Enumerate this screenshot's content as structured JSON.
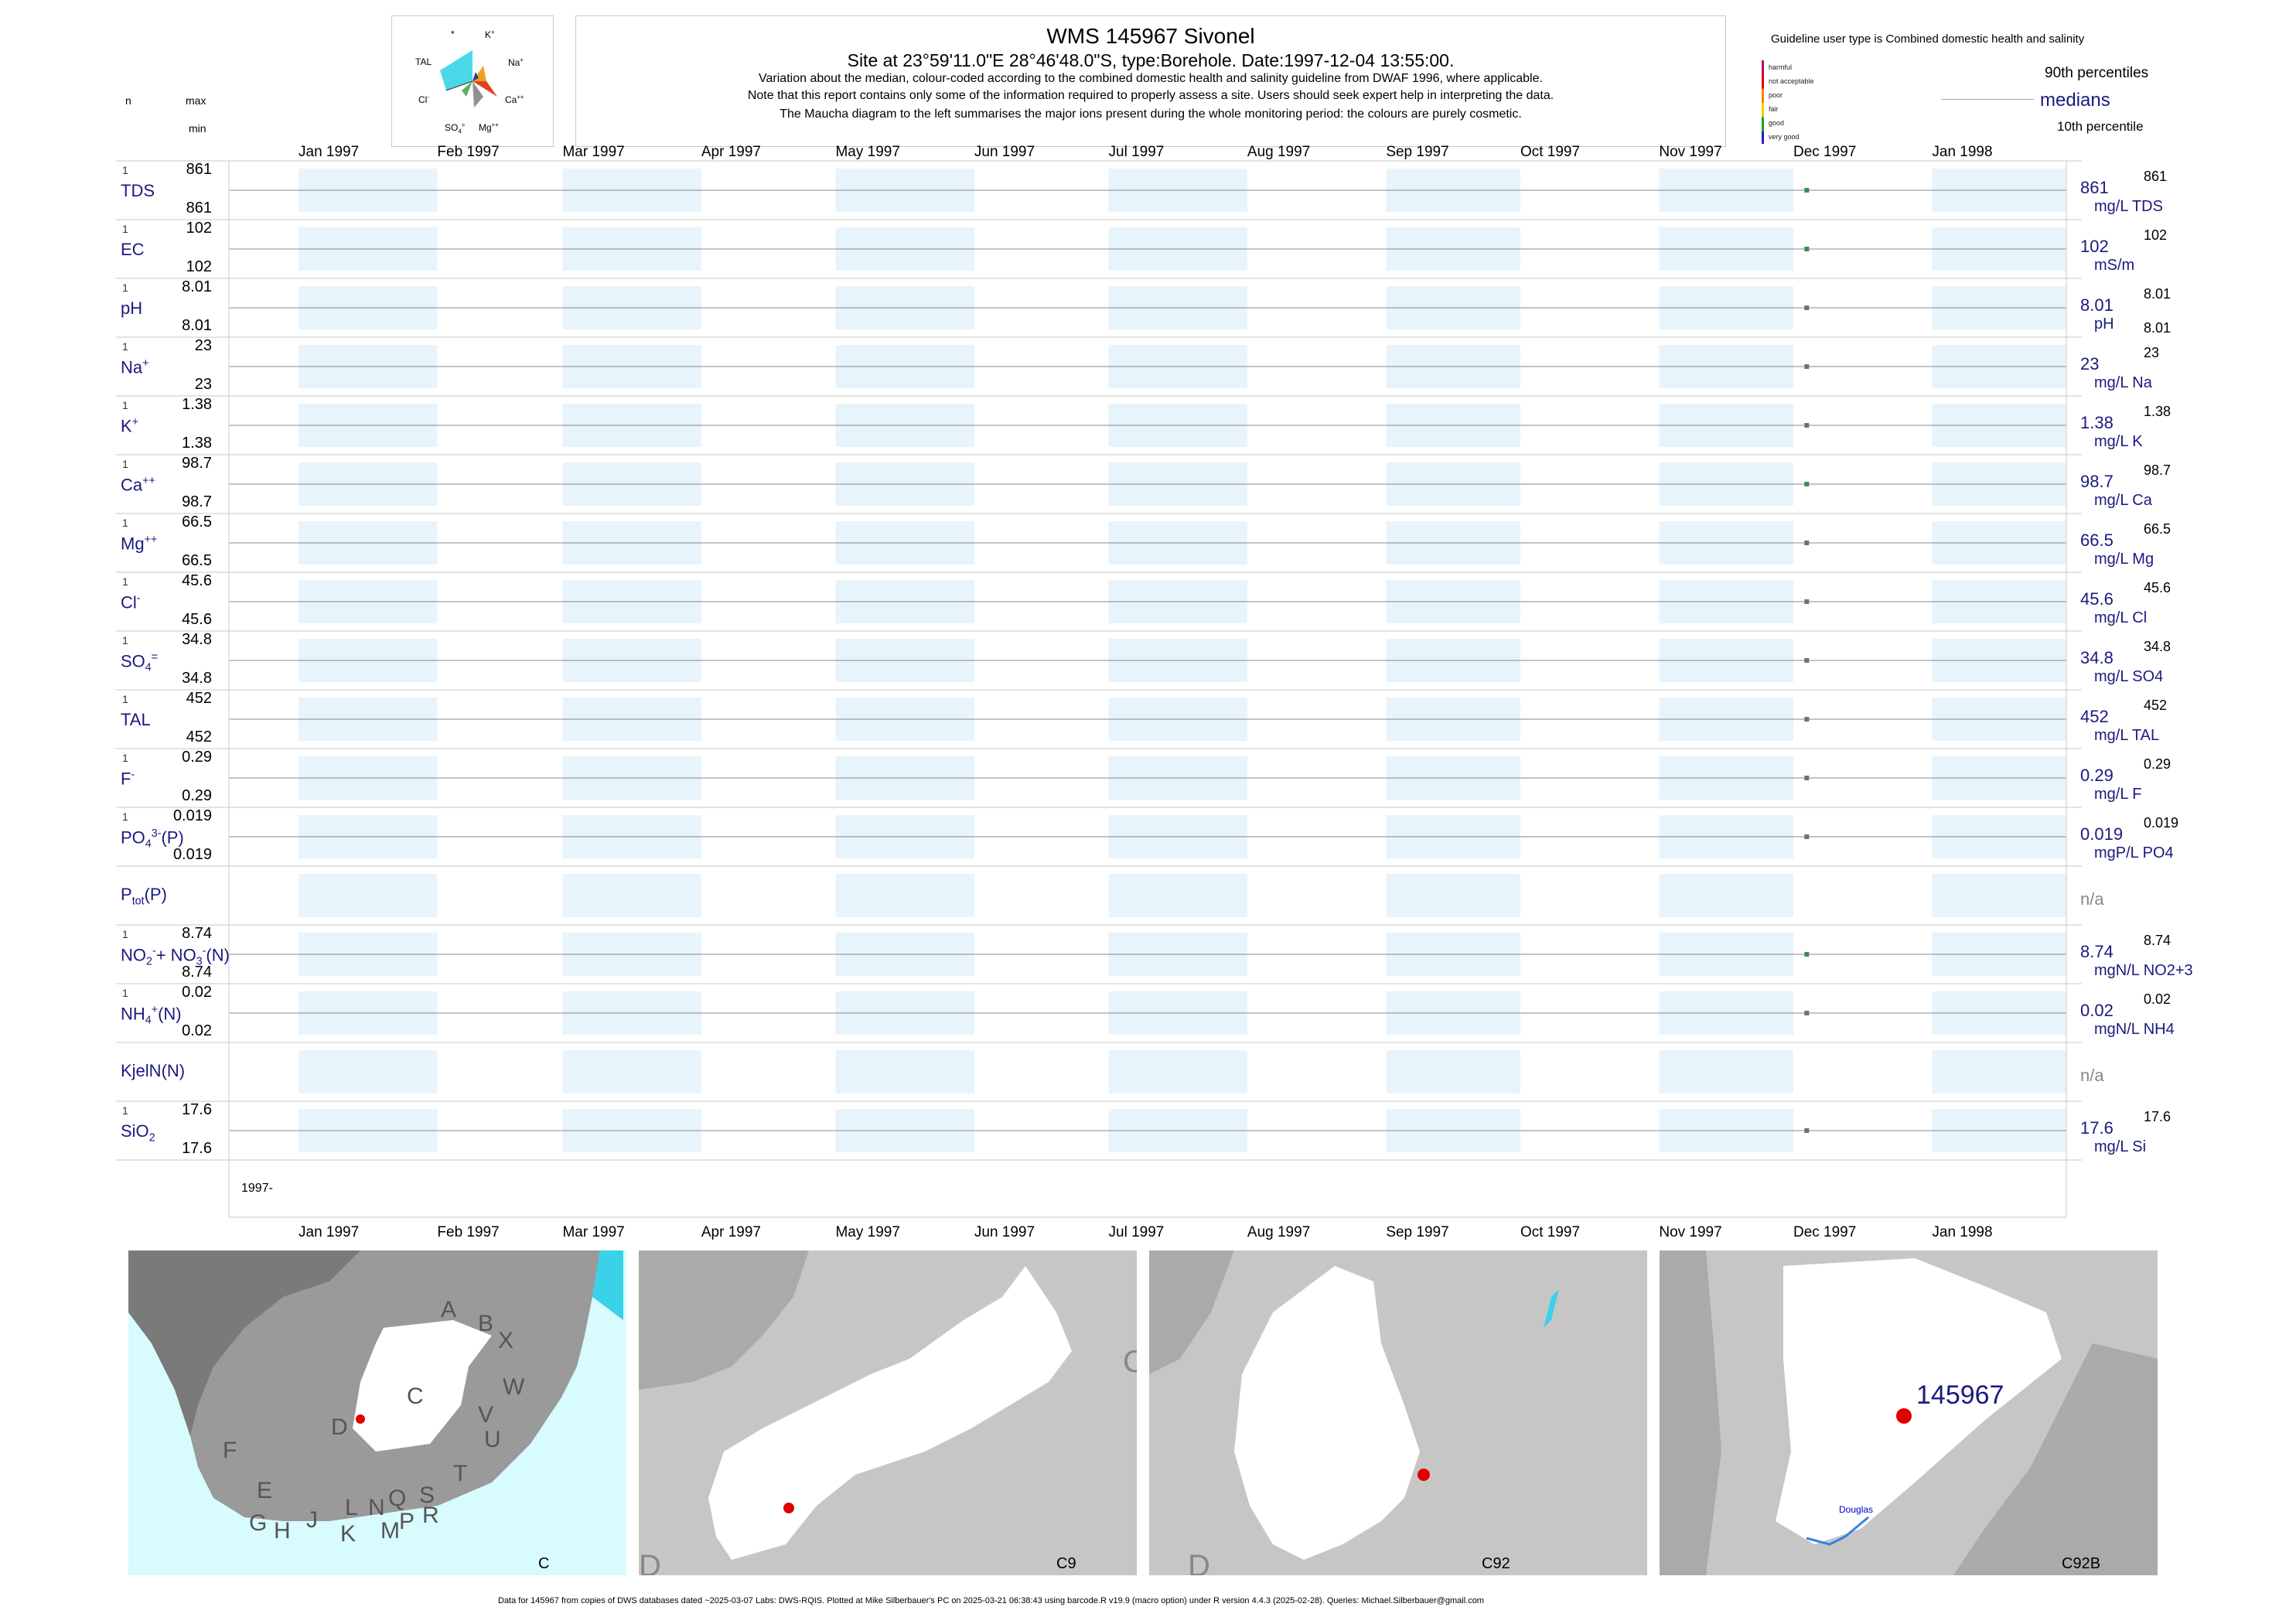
{
  "header": {
    "title": "WMS 145967  Sivonel",
    "subtitle": "Site at 23°59'11.0\"E 28°46'48.0\"S, type:Borehole. Date:1997-12-04 13:55:00.",
    "notes": [
      "Variation about the median,  colour-coded according to the combined domestic health and salinity guideline from DWAF 1996, where applicable.",
      "Note that this report contains only some of the information required to properly assess a site. Users should seek expert help in interpreting the data.",
      "The Maucha diagram to the left summarises the major ions present during the whole monitoring period: the colours are purely cosmetic."
    ]
  },
  "maucha": {
    "labels": [
      "*",
      "K+",
      "TAL",
      "Na+",
      "Cl-",
      "Ca++",
      "SO4=",
      "Mg++"
    ]
  },
  "left_header": {
    "n": "n",
    "max": "max",
    "min": "min"
  },
  "legend": {
    "guideline_text": "Guideline user type is Combined domestic health and salinity",
    "classes": [
      {
        "label": "harmful",
        "color": "#c0006c"
      },
      {
        "label": "not acceptable",
        "color": "#e00000"
      },
      {
        "label": "poor",
        "color": "#ff8000"
      },
      {
        "label": "fair",
        "color": "#e8d000"
      },
      {
        "label": "good",
        "color": "#20a020"
      },
      {
        "label": "very good",
        "color": "#2020c0"
      }
    ],
    "p90": "90th percentiles",
    "medians": "medians",
    "p10": "10th percentile"
  },
  "months": [
    "Jan 1997",
    "Feb 1997",
    "Mar 1997",
    "Apr 1997",
    "May 1997",
    "Jun 1997",
    "Jul 1997",
    "Aug 1997",
    "Sep 1997",
    "Oct 1997",
    "Nov 1997",
    "Dec 1997",
    "Jan 1998"
  ],
  "x_start_label": "1997-",
  "colors": {
    "shade": "#e8f4fc",
    "point_good": "#3a8a5a",
    "point_grey": "#707070",
    "line": "#888888",
    "navy": "#1a1a80"
  },
  "chart_data": {
    "type": "scatter",
    "x_axis": {
      "type": "date",
      "range": [
        "1997-01-01",
        "1998-01-31"
      ],
      "tick_labels": [
        "Jan 1997",
        "Feb 1997",
        "Mar 1997",
        "Apr 1997",
        "May 1997",
        "Jun 1997",
        "Jul 1997",
        "Aug 1997",
        "Sep 1997",
        "Oct 1997",
        "Nov 1997",
        "Dec 1997",
        "Jan 1998"
      ]
    },
    "sample_date": "1997-12-04",
    "series": [
      {
        "name": "TDS",
        "n": "1",
        "max": "861",
        "min": "861",
        "median": "861",
        "unit": "mg/L TDS",
        "p90": "861",
        "p10": "",
        "class": "good"
      },
      {
        "name": "EC",
        "n": "1",
        "max": "102",
        "min": "102",
        "median": "102",
        "unit": "mS/m",
        "p90": "102",
        "p10": "",
        "class": "good"
      },
      {
        "name": "pH",
        "n": "1",
        "max": "8.01",
        "min": "8.01",
        "median": "8.01",
        "unit": "pH",
        "p90": "8.01",
        "p10": "8.01",
        "class": "grey"
      },
      {
        "name": "Na+",
        "n": "1",
        "max": "23",
        "min": "23",
        "median": "23",
        "unit": "mg/L Na",
        "p90": "23",
        "p10": "",
        "class": "grey"
      },
      {
        "name": "K+",
        "n": "1",
        "max": "1.38",
        "min": "1.38",
        "median": "1.38",
        "unit": "mg/L K",
        "p90": "1.38",
        "p10": "",
        "class": "grey"
      },
      {
        "name": "Ca++",
        "n": "1",
        "max": "98.7",
        "min": "98.7",
        "median": "98.7",
        "unit": "mg/L Ca",
        "p90": "98.7",
        "p10": "",
        "class": "good"
      },
      {
        "name": "Mg++",
        "n": "1",
        "max": "66.5",
        "min": "66.5",
        "median": "66.5",
        "unit": "mg/L Mg",
        "p90": "66.5",
        "p10": "",
        "class": "grey"
      },
      {
        "name": "Cl-",
        "n": "1",
        "max": "45.6",
        "min": "45.6",
        "median": "45.6",
        "unit": "mg/L Cl",
        "p90": "45.6",
        "p10": "",
        "class": "grey"
      },
      {
        "name": "SO4=",
        "n": "1",
        "max": "34.8",
        "min": "34.8",
        "median": "34.8",
        "unit": "mg/L SO4",
        "p90": "34.8",
        "p10": "",
        "class": "grey"
      },
      {
        "name": "TAL",
        "n": "1",
        "max": "452",
        "min": "452",
        "median": "452",
        "unit": "mg/L TAL",
        "p90": "452",
        "p10": "",
        "class": "grey"
      },
      {
        "name": "F-",
        "n": "1",
        "max": "0.29",
        "min": "0.29",
        "median": "0.29",
        "unit": "mg/L F",
        "p90": "0.29",
        "p10": "",
        "class": "grey"
      },
      {
        "name": "PO43-(P)",
        "n": "1",
        "max": "0.019",
        "min": "0.019",
        "median": "0.019",
        "unit": "mgP/L PO4",
        "p90": "0.019",
        "p10": "",
        "class": "grey"
      },
      {
        "name": "Ptot(P)",
        "n": "",
        "max": "",
        "min": "",
        "median": "n/a",
        "unit": "",
        "p90": "",
        "p10": "",
        "class": "none"
      },
      {
        "name": "NO2-+NO3-(N)",
        "n": "1",
        "max": "8.74",
        "min": "8.74",
        "median": "8.74",
        "unit": "mgN/L NO2+3",
        "p90": "8.74",
        "p10": "",
        "class": "good"
      },
      {
        "name": "NH4+(N)",
        "n": "1",
        "max": "0.02",
        "min": "0.02",
        "median": "0.02",
        "unit": "mgN/L NH4",
        "p90": "0.02",
        "p10": "",
        "class": "grey"
      },
      {
        "name": "KjelN(N)",
        "n": "",
        "max": "",
        "min": "",
        "median": "n/a",
        "unit": "",
        "p90": "",
        "p10": "",
        "class": "none"
      },
      {
        "name": "SiO2",
        "n": "1",
        "max": "17.6",
        "min": "17.6",
        "median": "17.6",
        "unit": "mg/L Si",
        "p90": "17.6",
        "p10": "",
        "class": "grey"
      }
    ]
  },
  "maps": {
    "map1": {
      "caption": "C",
      "regions": [
        "A",
        "B",
        "X",
        "W",
        "C",
        "V",
        "U",
        "D",
        "T",
        "F",
        "E",
        "S",
        "R",
        "L",
        "N",
        "Q",
        "P",
        "M",
        "K",
        "J",
        "H",
        "G"
      ]
    },
    "map2": {
      "caption": "C9",
      "corner_letters": [
        "C",
        "D"
      ]
    },
    "map3": {
      "caption": "C92",
      "corner_letters": [
        "D"
      ]
    },
    "map4": {
      "caption": "C92B",
      "site_label": "145967",
      "town": "Douglas"
    }
  },
  "footer": "Data for 145967 from copies of DWS databases dated ~2025-03-07 Labs: DWS-RQIS. Plotted at Mike Silberbauer's PC on 2025-03-21 06:38:43 using barcode.R v19.9 (macro option) under R version 4.4.3 (2025-02-28). Queries: Michael.Silberbauer@gmail.com"
}
